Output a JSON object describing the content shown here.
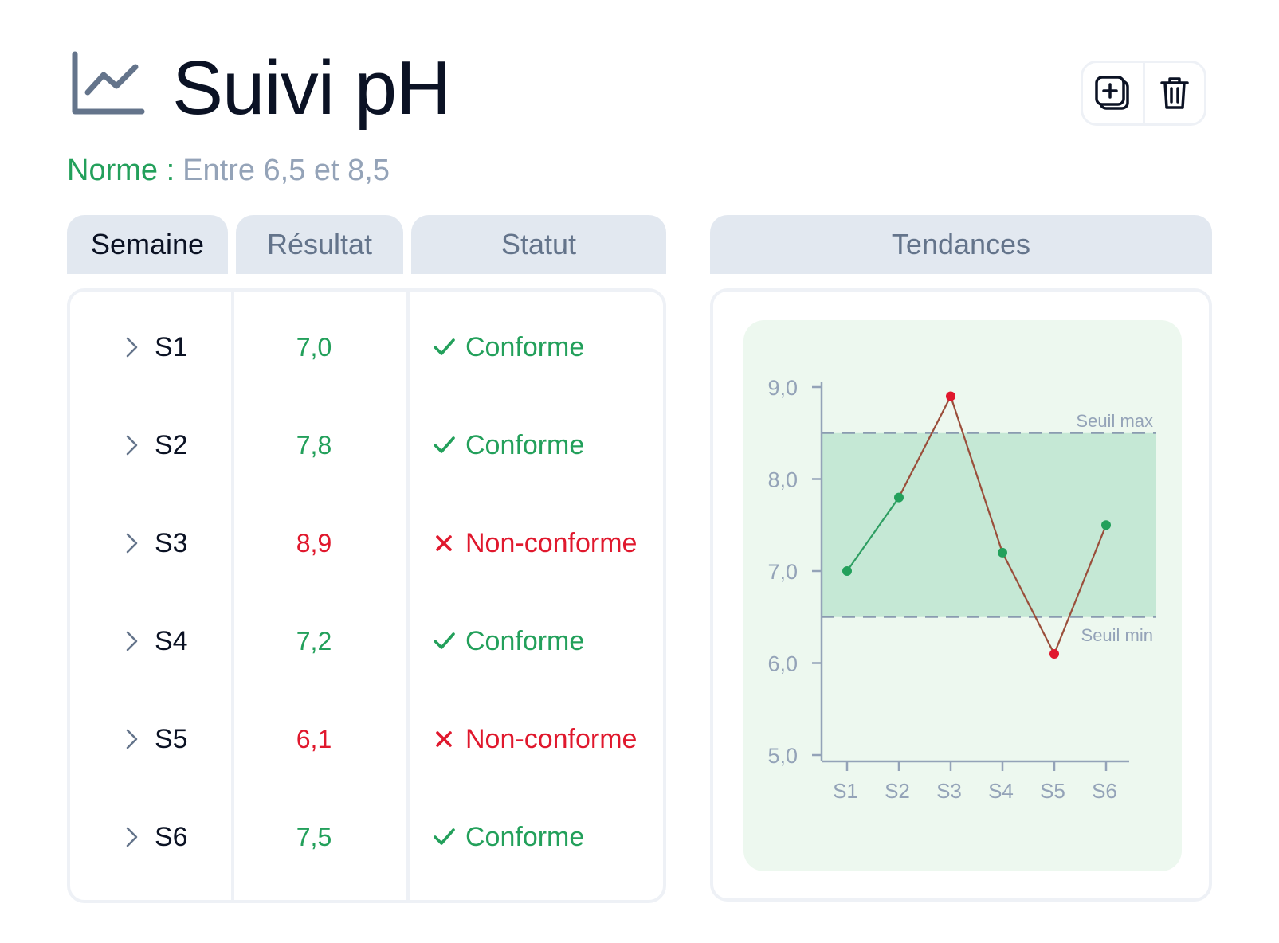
{
  "header": {
    "title": "Suivi pH",
    "title_icon": "line-chart-icon",
    "norm_label": "Norme :",
    "norm_value": "Entre 6,5 et 8,5"
  },
  "toolbar": {
    "buttons": [
      {
        "icon": "add-copy-icon"
      },
      {
        "icon": "trash-icon"
      }
    ]
  },
  "table": {
    "headers": [
      "Semaine",
      "Résultat",
      "Statut"
    ],
    "rows": [
      {
        "week": "S1",
        "result": "7,0",
        "status": "Conforme",
        "ok": true
      },
      {
        "week": "S2",
        "result": "7,8",
        "status": "Conforme",
        "ok": true
      },
      {
        "week": "S3",
        "result": "8,9",
        "status": "Non-conforme",
        "ok": false
      },
      {
        "week": "S4",
        "result": "7,2",
        "status": "Conforme",
        "ok": true
      },
      {
        "week": "S5",
        "result": "6,1",
        "status": "Non-conforme",
        "ok": false
      },
      {
        "week": "S6",
        "result": "7,5",
        "status": "Conforme",
        "ok": true
      }
    ]
  },
  "chart_panel": {
    "header": "Tendances"
  },
  "colors": {
    "ok": "#23a05b",
    "bad": "#e0182d",
    "band": "#c5e8d5",
    "line_ok": "#2e9e62",
    "line_bad": "#9a4e3a"
  },
  "chart_data": {
    "type": "line",
    "categories": [
      "S1",
      "S2",
      "S3",
      "S4",
      "S5",
      "S6"
    ],
    "values": [
      7.0,
      7.8,
      8.9,
      7.2,
      6.1,
      7.5
    ],
    "ylim": [
      5.0,
      9.0
    ],
    "yticks": [
      "5,0",
      "6,0",
      "7,0",
      "8,0",
      "9,0"
    ],
    "thresholds": {
      "max": {
        "value": 8.5,
        "label": "Seuil max"
      },
      "min": {
        "value": 6.5,
        "label": "Seuil min"
      }
    },
    "title": "",
    "xlabel": "",
    "ylabel": ""
  }
}
